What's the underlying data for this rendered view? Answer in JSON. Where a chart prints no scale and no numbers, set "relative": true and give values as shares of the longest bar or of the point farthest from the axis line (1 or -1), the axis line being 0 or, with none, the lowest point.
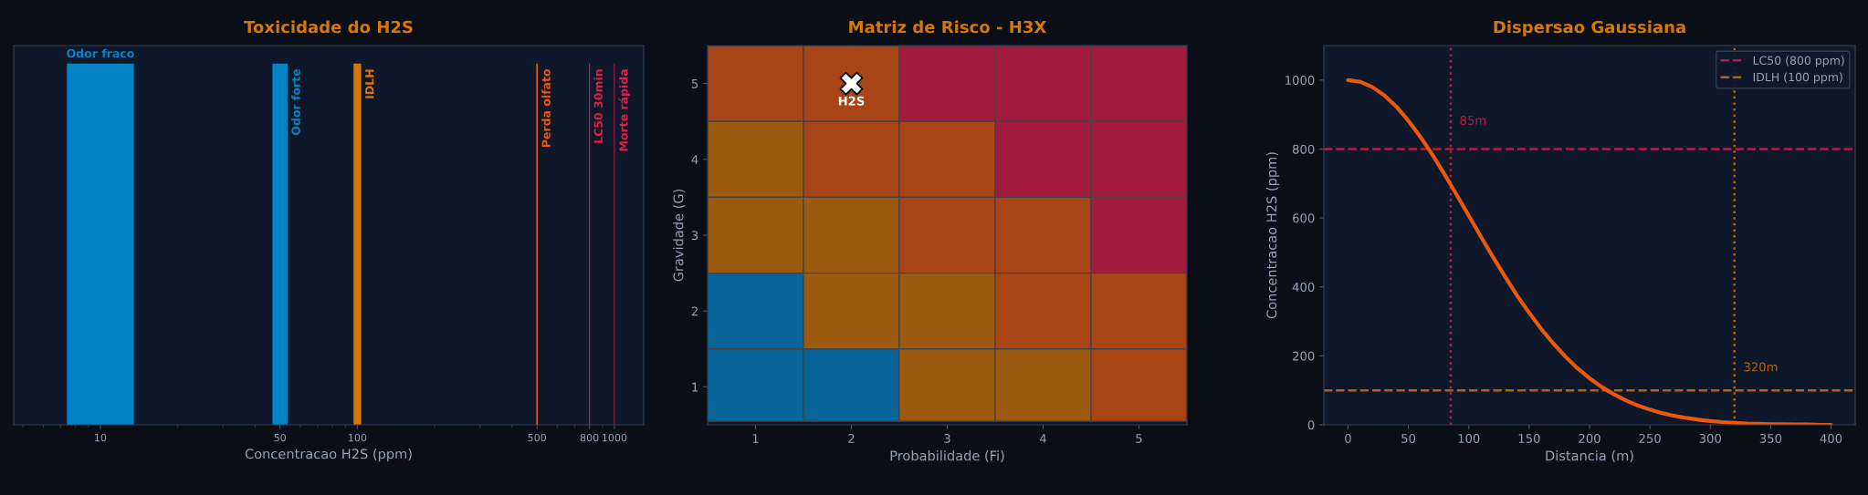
{
  "chart_data": [
    {
      "type": "bar",
      "title": "Toxicidade do H2S",
      "xlabel": "Concentracao H2S (ppm)",
      "x": [
        10,
        50,
        100,
        500,
        800,
        1000
      ],
      "values": [
        1,
        1,
        1,
        1,
        1,
        1
      ],
      "relative": true,
      "colors": [
        "#0284c7",
        "#0284c7",
        "#d97706",
        "#ea580c",
        "#e11d48",
        "#e11d48"
      ],
      "log": "x",
      "xlim": [
        4.6,
        1300
      ],
      "xticks": [
        10,
        50,
        100,
        500,
        800,
        1000
      ],
      "tick_labels": "x",
      "annotations": [
        {
          "text": "Odor fraco",
          "x": 10,
          "y": 1
        },
        {
          "text": "Odor forte",
          "x": 50,
          "y": 1
        },
        {
          "text": "IDLH",
          "x": 100,
          "y": 1
        },
        {
          "text": "Perda olfato",
          "x": 500,
          "y": 1
        },
        {
          "text": "LC50 30min",
          "x": 800,
          "y": 1
        },
        {
          "text": "Morte rápida",
          "x": 1000,
          "y": 1
        }
      ]
    },
    {
      "type": "scatter",
      "title": "Matriz de Risco - H3X",
      "xlabel": "Probabilidade (Fi)",
      "ylabel": "Gravidade (G)",
      "xlim": [
        0.5,
        5.5
      ],
      "ylim": [
        0.5,
        5.5
      ],
      "xticks": [
        1,
        2,
        3,
        4,
        5
      ],
      "yticks": [
        1,
        2,
        3,
        4,
        5
      ],
      "marker": "cross",
      "series": [
        {
          "name": "H2S",
          "color": "#ffffff",
          "x": [
            2
          ],
          "values": [
            5
          ]
        }
      ]
    },
    {
      "type": "line",
      "title": "Dispersao Gaussiana",
      "xlabel": "Distancia (m)",
      "ylabel": "Concentracao H2S (ppm)",
      "x": [
        0,
        10,
        20,
        30,
        40,
        50,
        60,
        70,
        80,
        90,
        100,
        110,
        120,
        130,
        140,
        150,
        160,
        170,
        180,
        190,
        200,
        210,
        220,
        230,
        240,
        250,
        260,
        270,
        280,
        290,
        300,
        310,
        320,
        330,
        340,
        350,
        360,
        370,
        380,
        390,
        400
      ],
      "series": [
        {
          "color": "#ea580c",
          "values": [
            1000,
            995,
            980,
            956,
            923,
            882,
            835,
            783,
            726,
            667,
            607,
            546,
            487,
            430,
            375,
            325,
            278,
            236,
            198,
            164,
            135,
            110,
            89,
            71,
            56,
            44,
            34,
            26,
            20,
            15,
            11,
            8,
            6,
            4,
            3,
            2,
            2,
            1,
            1,
            0,
            0
          ]
        }
      ],
      "xlim": [
        -20,
        420
      ],
      "ylim": [
        0,
        1100
      ],
      "xticks": [
        0,
        50,
        100,
        150,
        200,
        250,
        300,
        350,
        400
      ],
      "yticks": [
        0,
        200,
        400,
        600,
        800,
        1000
      ],
      "legend": "top right",
      "line_style": "solid",
      "ref_lines": [
        {
          "axis": "y",
          "value": 800,
          "label": "LC50 (800 ppm)",
          "color": "#b71c42",
          "line_style": "dashed"
        },
        {
          "axis": "y",
          "value": 100,
          "label": "IDLH (100 ppm)",
          "color": "#b1640d",
          "line_style": "dashed"
        },
        {
          "axis": "x",
          "value": 85,
          "label": "85m",
          "color": "#b71c42",
          "line_style": "dotted"
        },
        {
          "axis": "x",
          "value": 320,
          "label": "320m",
          "color": "#b1640d",
          "line_style": "dotted"
        }
      ]
    }
  ]
}
